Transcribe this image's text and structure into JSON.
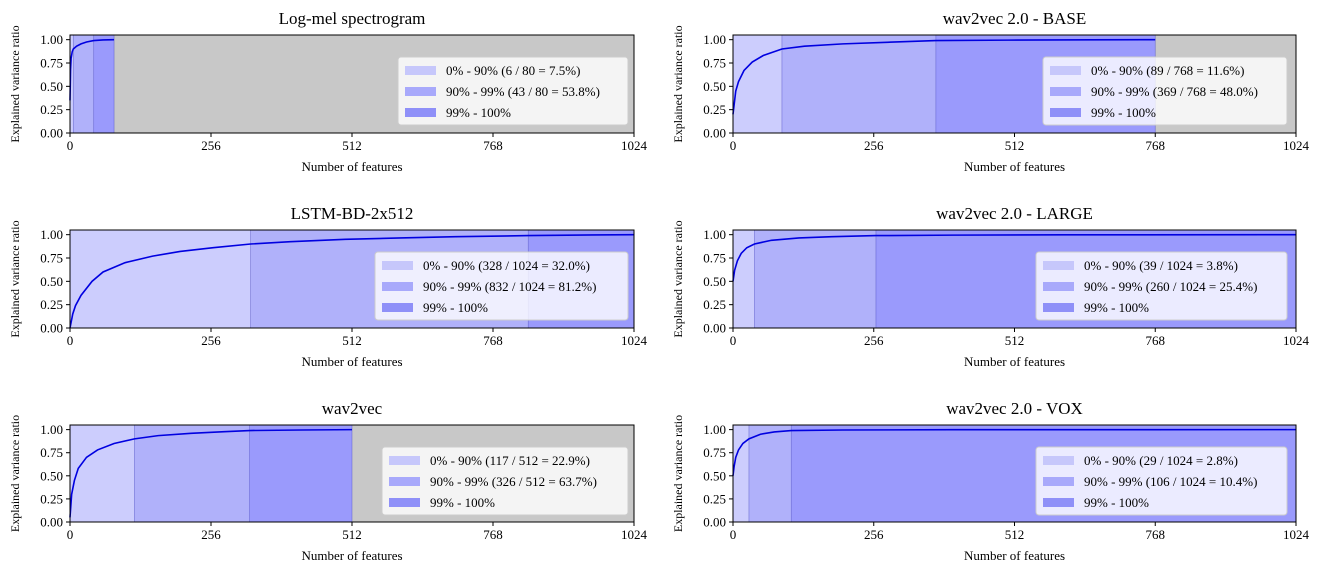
{
  "figure": {
    "background": "#ffffff",
    "axes_bg": "#c8c8c8",
    "curve_color": "#0000e0",
    "region_colors": [
      "#cccdfd",
      "#b0b1fa",
      "#9a9afc"
    ],
    "legend_swatch_colors": [
      "#c6c7fb",
      "#a8a9fb",
      "#8f90f8"
    ]
  },
  "chart_data": [
    {
      "type": "area",
      "title": "Log-mel spectrogram",
      "xlabel": "Number of features",
      "ylabel": "Explained variance ratio",
      "xlim": [
        0,
        1024
      ],
      "ylim": [
        0,
        1.05
      ],
      "xticks": [
        "0",
        "256",
        "512",
        "768",
        "1024"
      ],
      "yticks": [
        "0.00",
        "0.25",
        "0.50",
        "0.75",
        "1.00"
      ],
      "grid": false,
      "legend_position": "center-right",
      "total_features": 80,
      "k90": 6,
      "k99": 43,
      "curve_points": [
        [
          0,
          0.35
        ],
        [
          1,
          0.68
        ],
        [
          2,
          0.8
        ],
        [
          4,
          0.87
        ],
        [
          6,
          0.9
        ],
        [
          12,
          0.93
        ],
        [
          20,
          0.955
        ],
        [
          30,
          0.975
        ],
        [
          43,
          0.99
        ],
        [
          60,
          0.997
        ],
        [
          80,
          1.0
        ]
      ],
      "series": [
        {
          "name": "0% - 90% (6 / 80 = 7.5%)",
          "range": [
            0,
            6
          ]
        },
        {
          "name": "90% - 99% (43 / 80 = 53.8%)",
          "range": [
            6,
            43
          ]
        },
        {
          "name": "99% - 100%",
          "range": [
            43,
            80
          ]
        }
      ]
    },
    {
      "type": "area",
      "title": "wav2vec 2.0 - BASE",
      "xlabel": "Number of features",
      "ylabel": "Explained variance ratio",
      "xlim": [
        0,
        1024
      ],
      "ylim": [
        0,
        1.05
      ],
      "xticks": [
        "0",
        "256",
        "512",
        "768",
        "1024"
      ],
      "yticks": [
        "0.00",
        "0.25",
        "0.50",
        "0.75",
        "1.00"
      ],
      "grid": false,
      "legend_position": "center-right",
      "total_features": 768,
      "k90": 89,
      "k99": 369,
      "curve_points": [
        [
          0,
          0.2
        ],
        [
          5,
          0.45
        ],
        [
          10,
          0.55
        ],
        [
          20,
          0.67
        ],
        [
          35,
          0.76
        ],
        [
          55,
          0.83
        ],
        [
          89,
          0.9
        ],
        [
          130,
          0.93
        ],
        [
          200,
          0.955
        ],
        [
          280,
          0.972
        ],
        [
          369,
          0.99
        ],
        [
          500,
          0.995
        ],
        [
          650,
          0.998
        ],
        [
          768,
          1.0
        ]
      ],
      "series": [
        {
          "name": "0% - 90% (89 / 768 = 11.6%)",
          "range": [
            0,
            89
          ]
        },
        {
          "name": "90% - 99% (369 / 768 = 48.0%)",
          "range": [
            89,
            369
          ]
        },
        {
          "name": "99% - 100%",
          "range": [
            369,
            768
          ]
        }
      ]
    },
    {
      "type": "area",
      "title": "LSTM-BD-2x512",
      "xlabel": "Number of features",
      "ylabel": "Explained variance ratio",
      "xlim": [
        0,
        1024
      ],
      "ylim": [
        0,
        1.05
      ],
      "xticks": [
        "0",
        "256",
        "512",
        "768",
        "1024"
      ],
      "yticks": [
        "0.00",
        "0.25",
        "0.50",
        "0.75",
        "1.00"
      ],
      "grid": false,
      "legend_position": "center-right",
      "total_features": 1024,
      "k90": 328,
      "k99": 832,
      "curve_points": [
        [
          0,
          0.0
        ],
        [
          5,
          0.15
        ],
        [
          10,
          0.24
        ],
        [
          20,
          0.35
        ],
        [
          40,
          0.5
        ],
        [
          60,
          0.6
        ],
        [
          100,
          0.7
        ],
        [
          150,
          0.77
        ],
        [
          200,
          0.82
        ],
        [
          260,
          0.86
        ],
        [
          328,
          0.9
        ],
        [
          400,
          0.925
        ],
        [
          500,
          0.95
        ],
        [
          600,
          0.965
        ],
        [
          700,
          0.978
        ],
        [
          832,
          0.99
        ],
        [
          950,
          0.997
        ],
        [
          1024,
          1.0
        ]
      ],
      "series": [
        {
          "name": "0% - 90% (328 / 1024 = 32.0%)",
          "range": [
            0,
            328
          ]
        },
        {
          "name": "90% - 99% (832 / 1024 = 81.2%)",
          "range": [
            328,
            832
          ]
        },
        {
          "name": "99% - 100%",
          "range": [
            832,
            1024
          ]
        }
      ]
    },
    {
      "type": "area",
      "title": "wav2vec 2.0 - LARGE",
      "xlabel": "Number of features",
      "ylabel": "Explained variance ratio",
      "xlim": [
        0,
        1024
      ],
      "ylim": [
        0,
        1.05
      ],
      "xticks": [
        "0",
        "256",
        "512",
        "768",
        "1024"
      ],
      "yticks": [
        "0.00",
        "0.25",
        "0.50",
        "0.75",
        "1.00"
      ],
      "grid": false,
      "legend_position": "center-right",
      "total_features": 1024,
      "k90": 39,
      "k99": 260,
      "curve_points": [
        [
          0,
          0.5
        ],
        [
          3,
          0.62
        ],
        [
          8,
          0.72
        ],
        [
          15,
          0.8
        ],
        [
          25,
          0.86
        ],
        [
          39,
          0.9
        ],
        [
          70,
          0.94
        ],
        [
          120,
          0.965
        ],
        [
          180,
          0.978
        ],
        [
          260,
          0.99
        ],
        [
          400,
          0.995
        ],
        [
          600,
          0.998
        ],
        [
          1024,
          1.0
        ]
      ],
      "series": [
        {
          "name": "0% - 90% (39 / 1024 = 3.8%)",
          "range": [
            0,
            39
          ]
        },
        {
          "name": "90% - 99% (260 / 1024 = 25.4%)",
          "range": [
            39,
            260
          ]
        },
        {
          "name": "99% - 100%",
          "range": [
            260,
            1024
          ]
        }
      ]
    },
    {
      "type": "area",
      "title": "wav2vec",
      "xlabel": "Number of features",
      "ylabel": "Explained variance ratio",
      "xlim": [
        0,
        1024
      ],
      "ylim": [
        0,
        1.05
      ],
      "xticks": [
        "0",
        "256",
        "512",
        "768",
        "1024"
      ],
      "yticks": [
        "0.00",
        "0.25",
        "0.50",
        "0.75",
        "1.00"
      ],
      "grid": false,
      "legend_position": "center-right",
      "total_features": 512,
      "k90": 117,
      "k99": 326,
      "curve_points": [
        [
          0,
          0.05
        ],
        [
          3,
          0.3
        ],
        [
          8,
          0.45
        ],
        [
          15,
          0.58
        ],
        [
          30,
          0.7
        ],
        [
          50,
          0.78
        ],
        [
          80,
          0.85
        ],
        [
          117,
          0.9
        ],
        [
          160,
          0.935
        ],
        [
          220,
          0.96
        ],
        [
          280,
          0.978
        ],
        [
          326,
          0.99
        ],
        [
          420,
          0.996
        ],
        [
          512,
          1.0
        ]
      ],
      "series": [
        {
          "name": "0% - 90% (117 / 512 = 22.9%)",
          "range": [
            0,
            117
          ]
        },
        {
          "name": "90% - 99% (326 / 512 = 63.7%)",
          "range": [
            117,
            326
          ]
        },
        {
          "name": "99% - 100%",
          "range": [
            326,
            512
          ]
        }
      ]
    },
    {
      "type": "area",
      "title": "wav2vec 2.0 - VOX",
      "xlabel": "Number of features",
      "ylabel": "Explained variance ratio",
      "xlim": [
        0,
        1024
      ],
      "ylim": [
        0,
        1.05
      ],
      "xticks": [
        "0",
        "256",
        "512",
        "768",
        "1024"
      ],
      "yticks": [
        "0.00",
        "0.25",
        "0.50",
        "0.75",
        "1.00"
      ],
      "grid": false,
      "legend_position": "center-right",
      "total_features": 1024,
      "k90": 29,
      "k99": 106,
      "curve_points": [
        [
          0,
          0.5
        ],
        [
          2,
          0.6
        ],
        [
          5,
          0.7
        ],
        [
          10,
          0.78
        ],
        [
          18,
          0.85
        ],
        [
          29,
          0.9
        ],
        [
          50,
          0.95
        ],
        [
          75,
          0.975
        ],
        [
          106,
          0.99
        ],
        [
          200,
          0.996
        ],
        [
          400,
          0.999
        ],
        [
          1024,
          1.0
        ]
      ],
      "series": [
        {
          "name": "0% - 90% (29 / 1024 = 2.8%)",
          "range": [
            0,
            29
          ]
        },
        {
          "name": "90% - 99% (106 / 1024 = 10.4%)",
          "range": [
            29,
            106
          ]
        },
        {
          "name": "99% - 100%",
          "range": [
            106,
            1024
          ]
        }
      ]
    }
  ]
}
